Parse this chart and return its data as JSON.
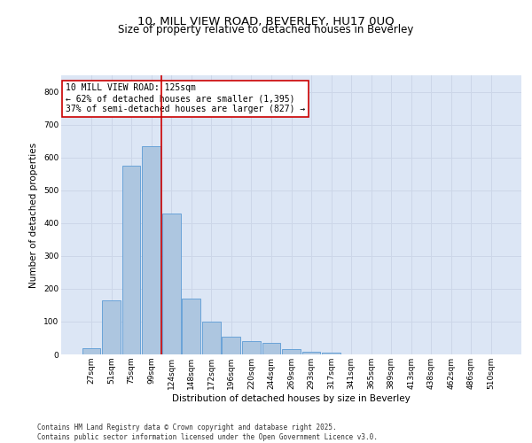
{
  "title_line1": "10, MILL VIEW ROAD, BEVERLEY, HU17 0UQ",
  "title_line2": "Size of property relative to detached houses in Beverley",
  "xlabel": "Distribution of detached houses by size in Beverley",
  "ylabel": "Number of detached properties",
  "categories": [
    "27sqm",
    "51sqm",
    "75sqm",
    "99sqm",
    "124sqm",
    "148sqm",
    "172sqm",
    "196sqm",
    "220sqm",
    "244sqm",
    "269sqm",
    "293sqm",
    "317sqm",
    "341sqm",
    "365sqm",
    "389sqm",
    "413sqm",
    "438sqm",
    "462sqm",
    "486sqm",
    "510sqm"
  ],
  "values": [
    20,
    165,
    575,
    635,
    430,
    170,
    100,
    55,
    40,
    35,
    15,
    8,
    5,
    0,
    0,
    0,
    0,
    0,
    0,
    0,
    0
  ],
  "bar_color": "#adc6e0",
  "bar_edge_color": "#5b9bd5",
  "vline_color": "#cc0000",
  "annotation_text": "10 MILL VIEW ROAD: 125sqm\n← 62% of detached houses are smaller (1,395)\n37% of semi-detached houses are larger (827) →",
  "annotation_box_color": "#ffffff",
  "annotation_box_edge_color": "#cc0000",
  "ylim": [
    0,
    850
  ],
  "yticks": [
    0,
    100,
    200,
    300,
    400,
    500,
    600,
    700,
    800
  ],
  "grid_color": "#ccd6e8",
  "background_color": "#dce6f5",
  "footer_text": "Contains HM Land Registry data © Crown copyright and database right 2025.\nContains public sector information licensed under the Open Government Licence v3.0.",
  "title_fontsize": 9.5,
  "subtitle_fontsize": 8.5,
  "axis_label_fontsize": 7.5,
  "tick_fontsize": 6.5,
  "annotation_fontsize": 7,
  "footer_fontsize": 5.5
}
